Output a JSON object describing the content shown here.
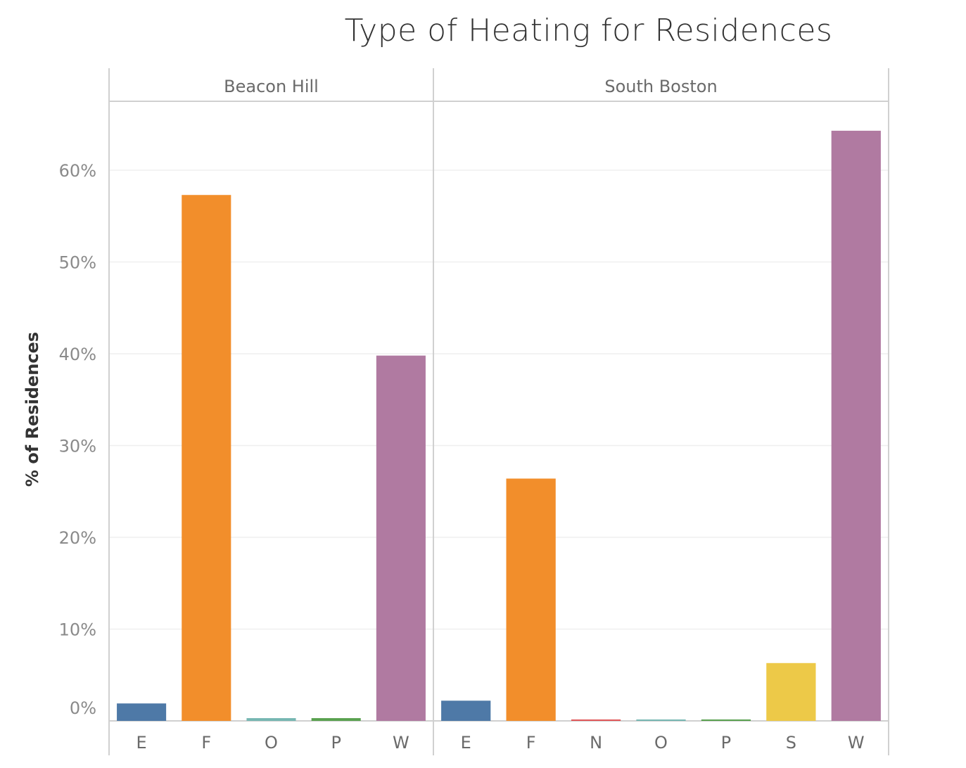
{
  "chart_data": {
    "type": "bar",
    "title": "Type of Heating for Residences",
    "xlabel": "",
    "ylabel": "% of Residences",
    "ylim": [
      0,
      0.66
    ],
    "yticks": [
      0,
      0.1,
      0.2,
      0.3,
      0.4,
      0.5,
      0.6
    ],
    "ytick_labels": [
      "0%",
      "10%",
      "20%",
      "30%",
      "40%",
      "50%",
      "60%"
    ],
    "grid": true,
    "legend": "none",
    "colors": {
      "E": "#4e79a7",
      "F": "#f28e2b",
      "N": "#e15759",
      "O": "#76b7b2",
      "P": "#59a14f",
      "S": "#edc948",
      "W": "#b07aa1"
    },
    "panels": [
      {
        "name": "Beacon Hill",
        "categories": [
          "E",
          "F",
          "O",
          "P",
          "W"
        ],
        "values": [
          0.019,
          0.573,
          0.003,
          0.003,
          0.398
        ]
      },
      {
        "name": "South Boston",
        "categories": [
          "E",
          "F",
          "N",
          "O",
          "P",
          "S",
          "W"
        ],
        "values": [
          0.022,
          0.264,
          0.001,
          0.001,
          0.001,
          0.063,
          0.643
        ]
      }
    ]
  }
}
